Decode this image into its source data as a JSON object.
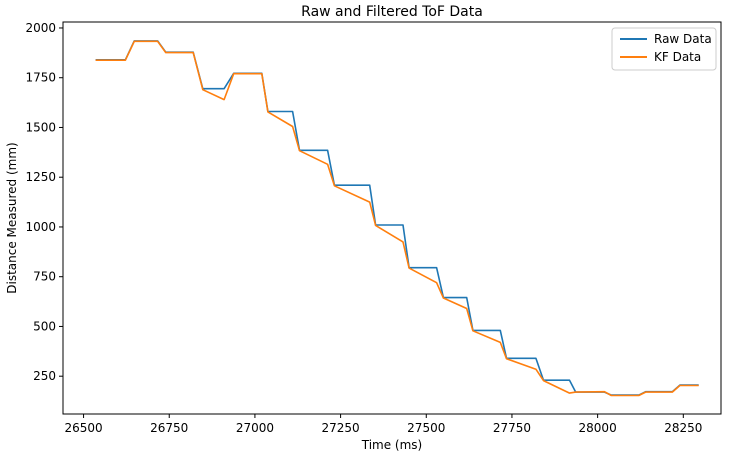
{
  "chart_data": {
    "type": "line",
    "title": "Raw and Filtered ToF Data",
    "xlabel": "Time (ms)",
    "ylabel": "Distance Measured (mm)",
    "xlim": [
      26440,
      28360
    ],
    "ylim": [
      60,
      2030
    ],
    "xticks": [
      26500,
      26750,
      27000,
      27250,
      27500,
      27750,
      28000,
      28250
    ],
    "yticks": [
      250,
      500,
      750,
      1000,
      1250,
      1500,
      1750,
      2000
    ],
    "grid": false,
    "legend_position": "top-right",
    "series": [
      {
        "name": "Raw Data",
        "color": "#1f77b4",
        "x": [
          26535,
          26622,
          26648,
          26716,
          26740,
          26820,
          26848,
          26910,
          26938,
          27020,
          27038,
          27110,
          27130,
          27212,
          27232,
          27335,
          27352,
          27432,
          27450,
          27530,
          27550,
          27618,
          27636,
          27716,
          27734,
          27820,
          27842,
          27918,
          27936,
          28020,
          28040,
          28120,
          28140,
          28218,
          28240,
          28295
        ],
        "y": [
          1840,
          1840,
          1935,
          1935,
          1878,
          1878,
          1695,
          1695,
          1772,
          1772,
          1580,
          1580,
          1385,
          1385,
          1210,
          1210,
          1010,
          1010,
          795,
          795,
          645,
          645,
          480,
          480,
          340,
          340,
          230,
          230,
          170,
          170,
          155,
          155,
          172,
          172,
          205,
          205
        ]
      },
      {
        "name": "KF Data",
        "color": "#ff7f0e",
        "x": [
          26535,
          26622,
          26648,
          26716,
          26740,
          26820,
          26848,
          26910,
          26938,
          27020,
          27038,
          27110,
          27130,
          27212,
          27232,
          27335,
          27352,
          27432,
          27450,
          27530,
          27550,
          27618,
          27636,
          27716,
          27734,
          27820,
          27842,
          27918,
          27936,
          28020,
          28040,
          28120,
          28140,
          28218,
          28240,
          28295
        ],
        "y": [
          1838,
          1838,
          1933,
          1933,
          1876,
          1876,
          1690,
          1640,
          1770,
          1770,
          1578,
          1505,
          1383,
          1315,
          1207,
          1125,
          1008,
          925,
          793,
          720,
          643,
          590,
          478,
          420,
          338,
          285,
          228,
          165,
          170,
          172,
          153,
          153,
          170,
          170,
          203,
          203
        ]
      }
    ]
  }
}
